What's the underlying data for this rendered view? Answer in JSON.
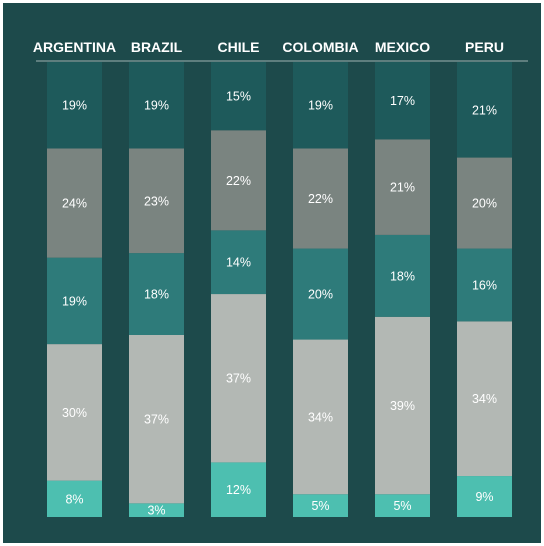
{
  "chart_data": {
    "type": "bar",
    "stacked": true,
    "normalized": true,
    "categories": [
      "ARGENTINA",
      "BRAZIL",
      "CHILE",
      "COLOMBIA",
      "MEXICO",
      "PERU"
    ],
    "series": [
      {
        "color": "#1e5a5b",
        "values": [
          19,
          19,
          15,
          19,
          17,
          21
        ]
      },
      {
        "color": "#7a8480",
        "values": [
          24,
          23,
          22,
          22,
          21,
          20
        ]
      },
      {
        "color": "#2e7b7a",
        "values": [
          19,
          18,
          14,
          20,
          18,
          16
        ]
      },
      {
        "color": "#b3b8b4",
        "values": [
          30,
          37,
          37,
          34,
          39,
          34
        ]
      },
      {
        "color": "#4dbfb0",
        "values": [
          8,
          3,
          12,
          5,
          5,
          9
        ]
      }
    ],
    "value_suffix": "%",
    "ylim": [
      0,
      100
    ],
    "grid": false,
    "legend": "none"
  },
  "colors": {
    "background": "#1d4a4b",
    "label_text": "#ffffff",
    "divider": "#9fb3b2"
  }
}
